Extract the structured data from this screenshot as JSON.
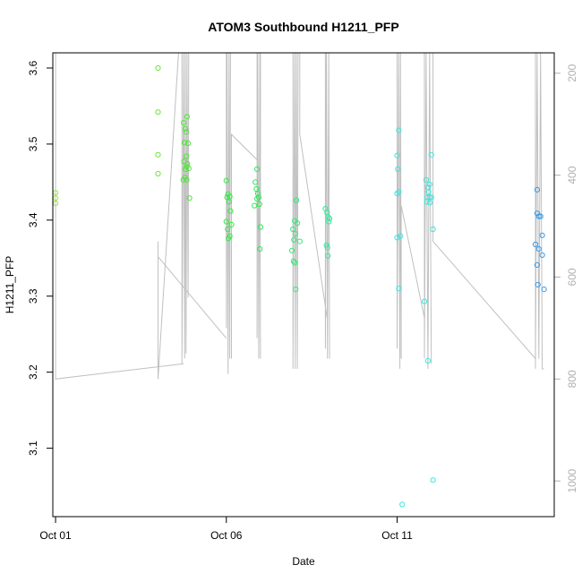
{
  "chart_data": {
    "type": "scatter",
    "title": "ATOM3 Southbound H1211_PFP",
    "xlabel": "Date",
    "ylabel": "H1211_PFP",
    "xlim": [
      -0.08,
      14.6
    ],
    "ylim": [
      3.01,
      3.62
    ],
    "x_ticks": [
      {
        "value": 0,
        "label": "Oct 01"
      },
      {
        "value": 5,
        "label": "Oct 06"
      },
      {
        "value": 10,
        "label": "Oct 11"
      }
    ],
    "y_ticks": [
      3.1,
      3.2,
      3.3,
      3.4,
      3.5,
      3.6
    ],
    "right_axis": {
      "label": "",
      "lim": [
        1070,
        160
      ],
      "ticks": [
        200,
        400,
        600,
        800,
        1000
      ],
      "color": "#b0b0b0"
    },
    "points": [
      {
        "x": 0.0,
        "y": 3.436,
        "c": "#9ee34f"
      },
      {
        "x": 0.0,
        "y": 3.429,
        "c": "#9ee34f"
      },
      {
        "x": 0.0,
        "y": 3.422,
        "c": "#9ee34f"
      },
      {
        "x": 3.0,
        "y": 3.6,
        "c": "#6ee63c"
      },
      {
        "x": 3.0,
        "y": 3.542,
        "c": "#6ee63c"
      },
      {
        "x": 3.0,
        "y": 3.486,
        "c": "#6ee63c"
      },
      {
        "x": 3.0,
        "y": 3.461,
        "c": "#6ee63c"
      },
      {
        "x": 3.75,
        "y": 3.528,
        "c": "#4ee637"
      },
      {
        "x": 3.8,
        "y": 3.52,
        "c": "#4ee637"
      },
      {
        "x": 3.85,
        "y": 3.536,
        "c": "#4ee637"
      },
      {
        "x": 3.82,
        "y": 3.516,
        "c": "#4ee637"
      },
      {
        "x": 3.78,
        "y": 3.502,
        "c": "#4ee637"
      },
      {
        "x": 3.88,
        "y": 3.501,
        "c": "#4ee637"
      },
      {
        "x": 3.83,
        "y": 3.484,
        "c": "#4ee637"
      },
      {
        "x": 3.76,
        "y": 3.477,
        "c": "#4ee637"
      },
      {
        "x": 3.86,
        "y": 3.474,
        "c": "#4ee637"
      },
      {
        "x": 3.8,
        "y": 3.467,
        "c": "#4ee637"
      },
      {
        "x": 3.84,
        "y": 3.47,
        "c": "#4ee637"
      },
      {
        "x": 3.9,
        "y": 3.468,
        "c": "#4ee637"
      },
      {
        "x": 3.79,
        "y": 3.456,
        "c": "#4ee637"
      },
      {
        "x": 3.84,
        "y": 3.453,
        "c": "#4ee637"
      },
      {
        "x": 3.74,
        "y": 3.453,
        "c": "#4ee637"
      },
      {
        "x": 3.92,
        "y": 3.429,
        "c": "#4ee637"
      },
      {
        "x": 5.0,
        "y": 3.452,
        "c": "#38e647"
      },
      {
        "x": 5.05,
        "y": 3.434,
        "c": "#38e647"
      },
      {
        "x": 5.1,
        "y": 3.431,
        "c": "#38e647"
      },
      {
        "x": 5.02,
        "y": 3.43,
        "c": "#38e647"
      },
      {
        "x": 5.08,
        "y": 3.424,
        "c": "#38e647"
      },
      {
        "x": 5.12,
        "y": 3.412,
        "c": "#38e647"
      },
      {
        "x": 5.0,
        "y": 3.398,
        "c": "#38e647"
      },
      {
        "x": 5.15,
        "y": 3.394,
        "c": "#38e647"
      },
      {
        "x": 5.04,
        "y": 3.388,
        "c": "#38e647"
      },
      {
        "x": 5.1,
        "y": 3.379,
        "c": "#38e647"
      },
      {
        "x": 5.06,
        "y": 3.376,
        "c": "#38e647"
      },
      {
        "x": 5.9,
        "y": 3.467,
        "c": "#36e65a"
      },
      {
        "x": 5.85,
        "y": 3.45,
        "c": "#36e65a"
      },
      {
        "x": 5.88,
        "y": 3.441,
        "c": "#36e65a"
      },
      {
        "x": 5.92,
        "y": 3.435,
        "c": "#36e65a"
      },
      {
        "x": 5.95,
        "y": 3.43,
        "c": "#36e65a"
      },
      {
        "x": 5.9,
        "y": 3.428,
        "c": "#36e65a"
      },
      {
        "x": 5.97,
        "y": 3.421,
        "c": "#36e65a"
      },
      {
        "x": 5.82,
        "y": 3.419,
        "c": "#36e65a"
      },
      {
        "x": 6.0,
        "y": 3.391,
        "c": "#36e65a"
      },
      {
        "x": 5.98,
        "y": 3.362,
        "c": "#36e65a"
      },
      {
        "x": 7.05,
        "y": 3.426,
        "c": "#36e67c"
      },
      {
        "x": 7.0,
        "y": 3.399,
        "c": "#36e67c"
      },
      {
        "x": 7.08,
        "y": 3.396,
        "c": "#36e67c"
      },
      {
        "x": 6.95,
        "y": 3.388,
        "c": "#36e67c"
      },
      {
        "x": 7.02,
        "y": 3.382,
        "c": "#36e67c"
      },
      {
        "x": 6.98,
        "y": 3.374,
        "c": "#36e67c"
      },
      {
        "x": 7.15,
        "y": 3.372,
        "c": "#36e67c"
      },
      {
        "x": 6.92,
        "y": 3.36,
        "c": "#36e67c"
      },
      {
        "x": 6.97,
        "y": 3.346,
        "c": "#36e67c"
      },
      {
        "x": 7.0,
        "y": 3.344,
        "c": "#36e67c"
      },
      {
        "x": 7.03,
        "y": 3.309,
        "c": "#36e67c"
      },
      {
        "x": 7.9,
        "y": 3.415,
        "c": "#38e69a"
      },
      {
        "x": 7.95,
        "y": 3.41,
        "c": "#38e69a"
      },
      {
        "x": 7.98,
        "y": 3.404,
        "c": "#38e69a"
      },
      {
        "x": 8.02,
        "y": 3.402,
        "c": "#38e69a"
      },
      {
        "x": 8.0,
        "y": 3.398,
        "c": "#38e69a"
      },
      {
        "x": 7.93,
        "y": 3.367,
        "c": "#38e69a"
      },
      {
        "x": 7.96,
        "y": 3.364,
        "c": "#38e69a"
      },
      {
        "x": 7.97,
        "y": 3.353,
        "c": "#38e69a"
      },
      {
        "x": 10.05,
        "y": 3.518,
        "c": "#3ae6e0"
      },
      {
        "x": 10.0,
        "y": 3.485,
        "c": "#3ae6e0"
      },
      {
        "x": 10.02,
        "y": 3.467,
        "c": "#3ae6e0"
      },
      {
        "x": 10.05,
        "y": 3.437,
        "c": "#3ae6e0"
      },
      {
        "x": 10.0,
        "y": 3.435,
        "c": "#3ae6e0"
      },
      {
        "x": 10.1,
        "y": 3.379,
        "c": "#3ae6e0"
      },
      {
        "x": 10.0,
        "y": 3.377,
        "c": "#3ae6e0"
      },
      {
        "x": 10.05,
        "y": 3.31,
        "c": "#3ae6e0"
      },
      {
        "x": 10.15,
        "y": 3.026,
        "c": "#3ae6e0"
      },
      {
        "x": 11.0,
        "y": 3.486,
        "c": "#3ae6e0"
      },
      {
        "x": 10.85,
        "y": 3.453,
        "c": "#3ae6e0"
      },
      {
        "x": 10.95,
        "y": 3.447,
        "c": "#3ae6e0"
      },
      {
        "x": 10.9,
        "y": 3.443,
        "c": "#3ae6e0"
      },
      {
        "x": 10.92,
        "y": 3.437,
        "c": "#3ae6e0"
      },
      {
        "x": 10.88,
        "y": 3.43,
        "c": "#3ae6e0"
      },
      {
        "x": 10.95,
        "y": 3.43,
        "c": "#3ae6e0"
      },
      {
        "x": 11.0,
        "y": 3.43,
        "c": "#3ae6e0"
      },
      {
        "x": 10.87,
        "y": 3.424,
        "c": "#3ae6e0"
      },
      {
        "x": 10.96,
        "y": 3.423,
        "c": "#3ae6e0"
      },
      {
        "x": 11.05,
        "y": 3.388,
        "c": "#3ae6e0"
      },
      {
        "x": 10.8,
        "y": 3.293,
        "c": "#3ae6e0"
      },
      {
        "x": 10.9,
        "y": 3.215,
        "c": "#3ae6e0"
      },
      {
        "x": 11.05,
        "y": 3.058,
        "c": "#3ae6e0"
      },
      {
        "x": 14.1,
        "y": 3.44,
        "c": "#3a9ae6"
      },
      {
        "x": 14.1,
        "y": 3.409,
        "c": "#3a9ae6"
      },
      {
        "x": 14.15,
        "y": 3.405,
        "c": "#3a9ae6"
      },
      {
        "x": 14.2,
        "y": 3.405,
        "c": "#3a9ae6"
      },
      {
        "x": 14.25,
        "y": 3.38,
        "c": "#3a9ae6"
      },
      {
        "x": 14.05,
        "y": 3.368,
        "c": "#3a9ae6"
      },
      {
        "x": 14.15,
        "y": 3.362,
        "c": "#3a9ae6"
      },
      {
        "x": 14.25,
        "y": 3.354,
        "c": "#3a9ae6"
      },
      {
        "x": 14.1,
        "y": 3.341,
        "c": "#3a9ae6"
      },
      {
        "x": 14.12,
        "y": 3.315,
        "c": "#3a9ae6"
      },
      {
        "x": 14.3,
        "y": 3.309,
        "c": "#3a9ae6"
      }
    ],
    "altitude_series": {
      "color": "#c0c0c0",
      "segments": [
        [
          [
            0.0,
            160
          ],
          [
            0.0,
            800
          ],
          [
            3.75,
            770
          ]
        ],
        [
          [
            3.0,
            730
          ],
          [
            3.0,
            800
          ]
        ],
        [
          [
            3.0,
            530
          ],
          [
            3.0,
            800
          ],
          [
            3.6,
            160
          ]
        ],
        [
          [
            3.0,
            560
          ],
          [
            5.0,
            720
          ]
        ],
        [
          [
            3.7,
            160
          ],
          [
            3.7,
            770
          ],
          [
            3.75,
            160
          ],
          [
            3.78,
            760
          ],
          [
            3.8,
            160
          ],
          [
            3.82,
            750
          ],
          [
            3.85,
            160
          ],
          [
            3.88,
            640
          ],
          [
            3.9,
            160
          ]
        ],
        [
          [
            5.0,
            160
          ],
          [
            5.0,
            700
          ],
          [
            5.02,
            160
          ],
          [
            5.05,
            790
          ],
          [
            5.08,
            160
          ],
          [
            5.1,
            760
          ],
          [
            5.12,
            160
          ]
        ],
        [
          [
            5.15,
            760
          ],
          [
            5.15,
            320
          ],
          [
            5.9,
            370
          ]
        ],
        [
          [
            5.9,
            160
          ],
          [
            5.9,
            720
          ],
          [
            5.92,
            160
          ],
          [
            5.95,
            760
          ],
          [
            5.98,
            160
          ],
          [
            6.0,
            760
          ]
        ],
        [
          [
            6.0,
            160
          ],
          [
            6.0,
            440
          ]
        ],
        [
          [
            6.95,
            160
          ],
          [
            6.95,
            780
          ],
          [
            7.0,
            160
          ],
          [
            7.02,
            780
          ],
          [
            7.05,
            160
          ],
          [
            7.08,
            780
          ],
          [
            7.1,
            160
          ]
        ],
        [
          [
            7.15,
            160
          ],
          [
            7.15,
            320
          ],
          [
            7.95,
            680
          ]
        ],
        [
          [
            7.9,
            160
          ],
          [
            7.9,
            740
          ],
          [
            7.93,
            160
          ],
          [
            7.96,
            760
          ],
          [
            8.0,
            160
          ],
          [
            8.02,
            760
          ]
        ],
        [
          [
            10.0,
            160
          ],
          [
            10.0,
            740
          ],
          [
            10.05,
            160
          ],
          [
            10.08,
            780
          ],
          [
            10.1,
            160
          ],
          [
            10.12,
            760
          ]
        ],
        [
          [
            10.12,
            760
          ],
          [
            10.12,
            460
          ],
          [
            10.8,
            680
          ]
        ],
        [
          [
            10.8,
            160
          ],
          [
            10.8,
            760
          ],
          [
            10.85,
            160
          ],
          [
            10.9,
            780
          ],
          [
            10.95,
            160
          ],
          [
            11.0,
            770
          ]
        ],
        [
          [
            11.05,
            160
          ],
          [
            11.05,
            530
          ],
          [
            14.05,
            760
          ]
        ],
        [
          [
            14.05,
            160
          ],
          [
            14.05,
            780
          ],
          [
            14.1,
            160
          ],
          [
            14.15,
            760
          ],
          [
            14.2,
            160
          ],
          [
            14.25,
            780
          ],
          [
            14.3,
            780
          ]
        ]
      ]
    }
  }
}
